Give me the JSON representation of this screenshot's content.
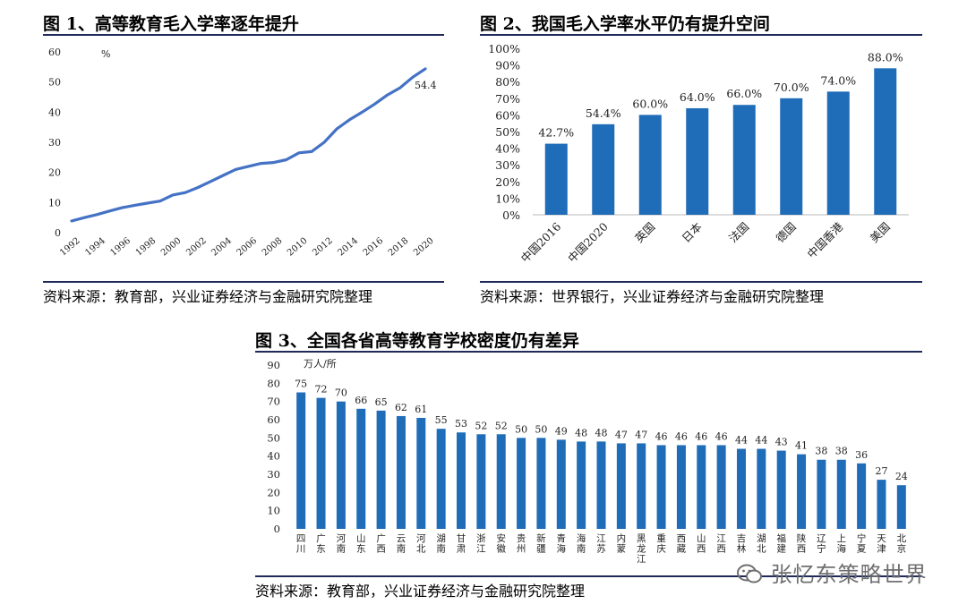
{
  "fig1": {
    "title": "图 1、高等教育毛入学率逐年提升",
    "source": "资料来源：教育部，兴业证券经济与金融研究院整理"
  },
  "fig2": {
    "title": "图 2、我国毛入学率水平仍有提升空间",
    "source": "资料来源：世界银行，兴业证券经济与金融研究院整理"
  },
  "fig3": {
    "title": "图 3、全国各省高等教育学校密度仍有差异",
    "source": "资料来源：教育部，兴业证券经济与金融研究院整理"
  },
  "watermark": {
    "text": "张忆东策略世界"
  },
  "colors": {
    "bar": "#1f6cb8",
    "line": "#4472c4",
    "rule": "#1f2a5a"
  },
  "chart_data": [
    {
      "type": "line",
      "title": "图 1、高等教育毛入学率逐年提升",
      "ylabel": "%",
      "ylim": [
        0,
        60
      ],
      "yticks": [
        0,
        10,
        20,
        30,
        40,
        50,
        60
      ],
      "xlim": [
        1992,
        2020
      ],
      "xticks": [
        "1992",
        "1994",
        "1996",
        "1998",
        "2000",
        "2002",
        "2004",
        "2006",
        "2008",
        "2010",
        "2012",
        "2014",
        "2016",
        "2018",
        "2020"
      ],
      "x": [
        1992,
        1993,
        1994,
        1995,
        1996,
        1997,
        1998,
        1999,
        2000,
        2001,
        2002,
        2003,
        2004,
        2005,
        2006,
        2007,
        2008,
        2009,
        2010,
        2011,
        2012,
        2013,
        2014,
        2015,
        2016,
        2017,
        2018,
        2019,
        2020
      ],
      "values": [
        3.9,
        5.0,
        6.0,
        7.2,
        8.3,
        9.1,
        9.8,
        10.5,
        12.5,
        13.3,
        15.0,
        17.0,
        19.0,
        21.0,
        22.0,
        23.0,
        23.3,
        24.2,
        26.5,
        26.9,
        30.0,
        34.5,
        37.5,
        40.0,
        42.7,
        45.7,
        48.1,
        51.6,
        54.4
      ],
      "annotations": [
        {
          "x": 2020,
          "text": "54.4"
        }
      ]
    },
    {
      "type": "bar",
      "title": "图 2、我国毛入学率水平仍有提升空间",
      "ylim": [
        0,
        100
      ],
      "yticks": [
        "0%",
        "10%",
        "20%",
        "30%",
        "40%",
        "50%",
        "60%",
        "70%",
        "80%",
        "90%",
        "100%"
      ],
      "categories": [
        "中国2016",
        "中国2020",
        "英国",
        "日本",
        "法国",
        "德国",
        "中国香港",
        "美国"
      ],
      "values": [
        42.7,
        54.4,
        60.0,
        64.0,
        66.0,
        70.0,
        74.0,
        88.0
      ],
      "labels": [
        "42.7%",
        "54.4%",
        "60.0%",
        "64.0%",
        "66.0%",
        "70.0%",
        "74.0%",
        "88.0%"
      ]
    },
    {
      "type": "bar",
      "title": "图 3、全国各省高等教育学校密度仍有差异",
      "ylabel": "万人/所",
      "ylim": [
        0,
        90
      ],
      "yticks": [
        0,
        10,
        20,
        30,
        40,
        50,
        60,
        70,
        80,
        90
      ],
      "categories": [
        "四川",
        "广东",
        "河南",
        "山东",
        "广西",
        "云南",
        "河北",
        "湖南",
        "甘肃",
        "浙江",
        "安徽",
        "贵州",
        "新疆",
        "青海",
        "海南",
        "江苏",
        "内蒙",
        "黑龙江",
        "重庆",
        "西藏",
        "山西",
        "江西",
        "吉林",
        "湖北",
        "福建",
        "陕西",
        "辽宁",
        "上海",
        "宁夏",
        "天津",
        "北京"
      ],
      "values": [
        75,
        72,
        70,
        66,
        65,
        62,
        61,
        55,
        53,
        52,
        52,
        50,
        50,
        49,
        48,
        48,
        47,
        47,
        46,
        46,
        46,
        46,
        44,
        44,
        43,
        41,
        38,
        38,
        36,
        27,
        24
      ]
    }
  ]
}
